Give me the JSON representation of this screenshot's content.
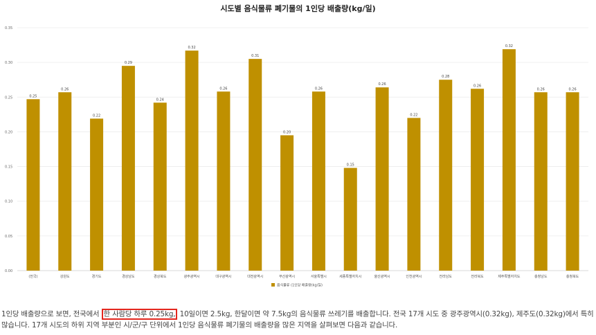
{
  "chart_data": {
    "type": "bar",
    "title": "시도별 음식물류 폐기물의 1인당 배출량(kg/일)",
    "categories": [
      "(전국)",
      "강원도",
      "경기도",
      "경상남도",
      "경상북도",
      "광주광역시",
      "대구광역시",
      "대전광역시",
      "부산광역시",
      "서울특별시",
      "세종특별자치시",
      "울산광역시",
      "인천광역시",
      "전라남도",
      "전라북도",
      "제주특별자치도",
      "충청남도",
      "충청북도"
    ],
    "series": [
      {
        "name": "음식물류 (1인당 배출량(kg/일)",
        "values": [
          0.247,
          0.257,
          0.219,
          0.295,
          0.242,
          0.317,
          0.258,
          0.305,
          0.195,
          0.258,
          0.148,
          0.264,
          0.22,
          0.275,
          0.262,
          0.319,
          0.257,
          0.257
        ],
        "labels": [
          "0.25",
          "0.26",
          "0.22",
          "0.29",
          "0.24",
          "0.32",
          "0.26",
          "0.31",
          "0.20",
          "0.26",
          "0.15",
          "0.26",
          "0.22",
          "0.28",
          "0.26",
          "0.32",
          "0.26",
          "0.26"
        ],
        "color": "#bf9000"
      }
    ],
    "yticks": [
      "0.00",
      "0.05",
      "0.10",
      "0.15",
      "0.20",
      "0.25",
      "0.30",
      "0.35"
    ],
    "ylim": [
      0,
      0.35
    ],
    "grid": true,
    "legend_position": "bottom"
  },
  "caption": {
    "before": "1인당 배출량으로 보면, 전국에서 ",
    "highlight": "한 사람당 하루 0.25kg,",
    "after": " 10일이면 2.5kg, 한달이면 약 7.5kg의 음식물류 쓰레기를 배출합니다. 전국 17개 시도 중 광주광역시(0.32kg), 제주도(0.32kg)에서 특히 많습니다. 17개 시도의 하위 지역 부분인 시/군/구 단위에서 1인당 음식물류 폐기물의 배출량을 많은 지역을 살펴보면 다음과 같습니다.",
    "highlight_color": "#e3261d"
  }
}
